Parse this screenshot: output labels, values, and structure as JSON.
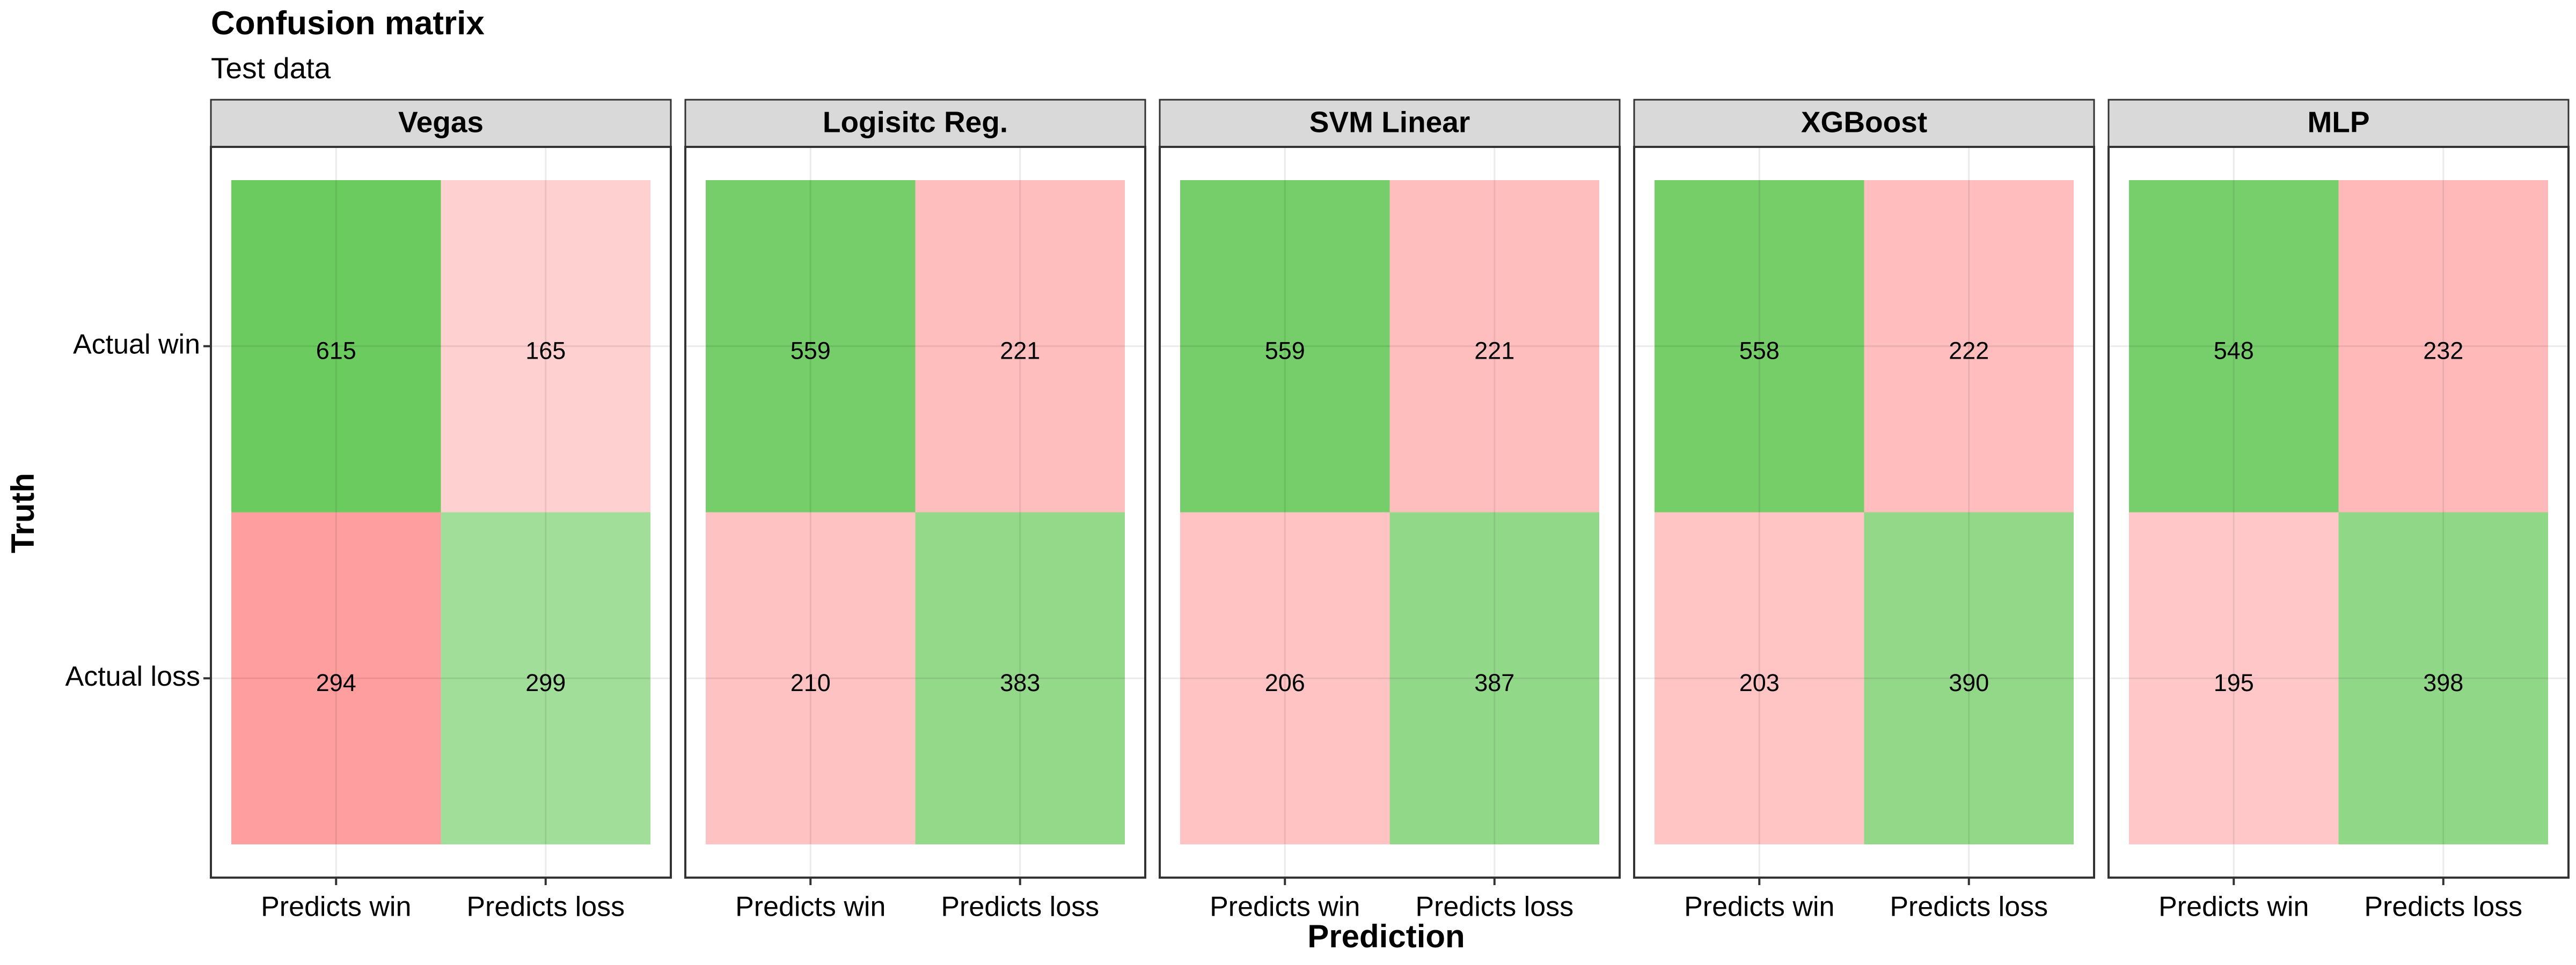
{
  "chart_data": {
    "type": "heatmap",
    "title": "Confusion matrix",
    "subtitle": "Test data",
    "xlabel": "Prediction",
    "ylabel": "Truth",
    "x_categories": [
      "Predicts win",
      "Predicts loss"
    ],
    "y_categories": [
      "Actual win",
      "Actual loss"
    ],
    "grid": true,
    "legend": "none",
    "colors": {
      "correct": "#6ccb5f",
      "incorrect": "#ff9e9e",
      "strip_fill": "#d9d9d9",
      "grid_line": "#ebebeb"
    },
    "panels": [
      {
        "name": "Vegas",
        "cells": [
          [
            615,
            165
          ],
          [
            294,
            299
          ]
        ]
      },
      {
        "name": "Logisitc Reg.",
        "cells": [
          [
            559,
            221
          ],
          [
            210,
            383
          ]
        ]
      },
      {
        "name": "SVM Linear",
        "cells": [
          [
            559,
            221
          ],
          [
            206,
            387
          ]
        ]
      },
      {
        "name": "XGBoost",
        "cells": [
          [
            558,
            222
          ],
          [
            203,
            390
          ]
        ]
      },
      {
        "name": "MLP",
        "cells": [
          [
            548,
            232
          ],
          [
            195,
            398
          ]
        ]
      }
    ]
  }
}
